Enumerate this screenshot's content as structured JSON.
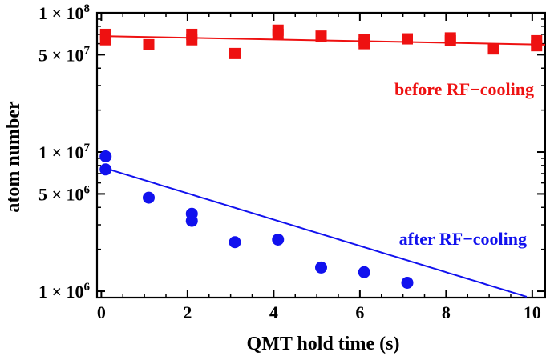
{
  "chart_data": {
    "type": "scatter",
    "xlabel": "QMT hold time (s)",
    "ylabel": "atom number",
    "xlim": [
      -0.1,
      10.3
    ],
    "ylim": [
      900000,
      100000000
    ],
    "y_scale": "log",
    "grid": false,
    "x_ticks": [
      0,
      2,
      4,
      6,
      8,
      10
    ],
    "x_tick_labels": [
      "0",
      "2",
      "4",
      "6",
      "8",
      "10"
    ],
    "y_ticks": [
      {
        "value": 100000000,
        "mant": "1",
        "times": "×",
        "base": "10",
        "exp": "8"
      },
      {
        "value": 50000000,
        "mant": "5",
        "times": "×",
        "base": "10",
        "exp": "7"
      },
      {
        "value": 10000000,
        "mant": "1",
        "times": "×",
        "base": "10",
        "exp": "7"
      },
      {
        "value": 5000000,
        "mant": "5",
        "times": "×",
        "base": "10",
        "exp": "6"
      },
      {
        "value": 1000000,
        "mant": "1",
        "times": "×",
        "base": "10",
        "exp": "6"
      }
    ],
    "series": [
      {
        "name": "before RF−cooling",
        "marker": "square",
        "color": "#ee1111",
        "x": [
          0.1,
          0.1,
          1.1,
          2.1,
          2.1,
          3.1,
          4.1,
          4.1,
          5.1,
          6.1,
          6.1,
          7.1,
          8.1,
          8.1,
          9.1,
          10.1,
          10.1
        ],
        "y": [
          70000000,
          64000000,
          59000000,
          70000000,
          64000000,
          51000000,
          75000000,
          70000000,
          68000000,
          64000000,
          60000000,
          65000000,
          66000000,
          63000000,
          55000000,
          63000000,
          58000000
        ],
        "fit": {
          "x": [
            0,
            10.3
          ],
          "y": [
            68000000,
            59000000
          ]
        }
      },
      {
        "name": "after RF−cooling",
        "marker": "circle",
        "color": "#1111ee",
        "x": [
          0.1,
          0.1,
          1.1,
          2.1,
          2.1,
          3.1,
          4.1,
          5.1,
          6.1,
          7.1
        ],
        "y": [
          9300000,
          7500000,
          4700000,
          3600000,
          3200000,
          2250000,
          2350000,
          1480000,
          1370000,
          1150000
        ],
        "fit": {
          "A": 7800000,
          "tau": 4.6,
          "xmax": 10.3
        }
      }
    ]
  }
}
